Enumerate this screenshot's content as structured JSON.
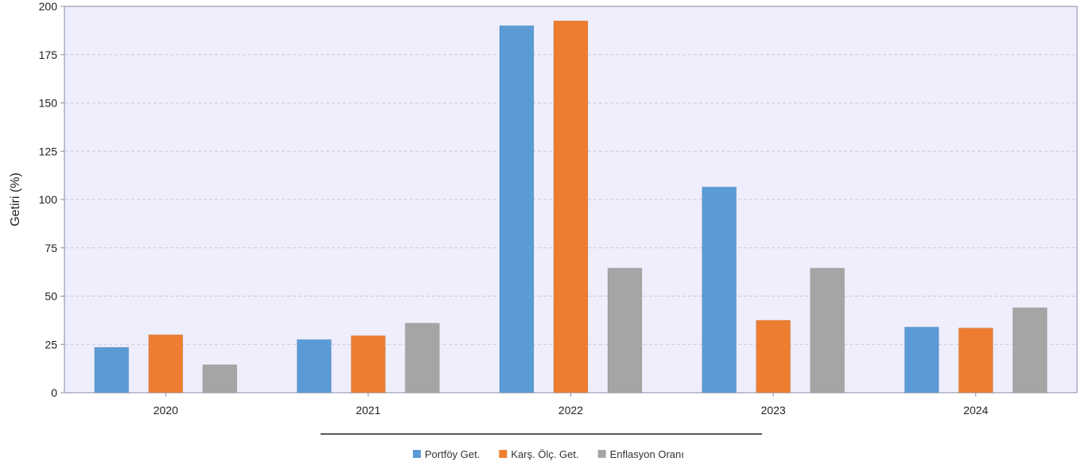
{
  "chart_data": {
    "type": "bar",
    "title": "",
    "xlabel": "",
    "ylabel": "Getiri (%)",
    "ylim": [
      0,
      200
    ],
    "yticks": [
      0,
      25,
      50,
      75,
      100,
      125,
      150,
      175,
      200
    ],
    "categories": [
      "2020",
      "2021",
      "2022",
      "2023",
      "2024"
    ],
    "series": [
      {
        "name": "Portföy Get.",
        "color": "#5b9bd5",
        "values": [
          23.5,
          27.5,
          190,
          106.5,
          34
        ]
      },
      {
        "name": "Karş. Ölç. Get.",
        "color": "#ed7d31",
        "values": [
          30,
          29.5,
          192.5,
          37.5,
          33.5
        ]
      },
      {
        "name": "Enflasyon Oranı",
        "color": "#a5a5a5",
        "values": [
          14.5,
          36,
          64.5,
          64.5,
          44
        ]
      }
    ],
    "grid": true,
    "legend": "bottom-center",
    "colors": {
      "plot_background": "#eeeefc",
      "grid": "#c8c8d8",
      "axis": "#8a8aa8"
    }
  }
}
